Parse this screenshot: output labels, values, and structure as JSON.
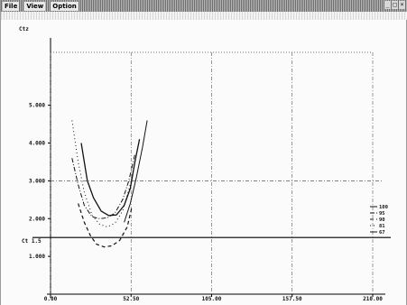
{
  "menu": {
    "items": [
      "File",
      "View",
      "Option"
    ]
  },
  "window_buttons": {
    "minimize": "_",
    "maximize": "□",
    "close": "×"
  },
  "chart_data": {
    "type": "line",
    "ylabel": "Ctz",
    "x_ticks": [
      "0.00",
      "52.50",
      "105.00",
      "157.50",
      "210.00"
    ],
    "xlim": [
      0,
      210
    ],
    "y_ticks": [
      "1.000",
      "2.000",
      "3.000",
      "4.000",
      "5.000"
    ],
    "ylim": [
      0,
      6.4
    ],
    "reference_line": {
      "label": "Ct 1.5",
      "y": 1.5
    },
    "legend": [
      "100",
      "95",
      "90",
      "81",
      "67"
    ],
    "series": [
      {
        "style": "solid",
        "x": [
          20,
          24,
          28,
          33,
          38,
          43,
          48,
          52,
          55,
          58
        ],
        "y": [
          4.0,
          3.0,
          2.55,
          2.2,
          2.08,
          2.1,
          2.35,
          2.8,
          3.5,
          4.1
        ]
      },
      {
        "style": "dashdot",
        "x": [
          14,
          18,
          22,
          27,
          32,
          37,
          42,
          47,
          51,
          55
        ],
        "y": [
          3.6,
          2.9,
          2.35,
          2.05,
          2.0,
          2.02,
          2.15,
          2.5,
          3.0,
          3.7
        ]
      },
      {
        "style": "dashed",
        "x": [
          18,
          22,
          26,
          30,
          35,
          40,
          45,
          50,
          53
        ],
        "y": [
          2.4,
          1.9,
          1.55,
          1.32,
          1.25,
          1.28,
          1.42,
          1.78,
          2.3
        ]
      },
      {
        "style": "dotted",
        "x": [
          14,
          18,
          22,
          27,
          32,
          37,
          42,
          47,
          52,
          57
        ],
        "y": [
          4.6,
          3.5,
          2.7,
          2.1,
          1.85,
          1.78,
          1.88,
          2.2,
          2.9,
          3.9
        ]
      },
      {
        "style": "solid-thin",
        "x": [
          48,
          52,
          56,
          60,
          63
        ],
        "y": [
          1.9,
          2.4,
          3.1,
          3.9,
          4.6
        ]
      }
    ]
  }
}
